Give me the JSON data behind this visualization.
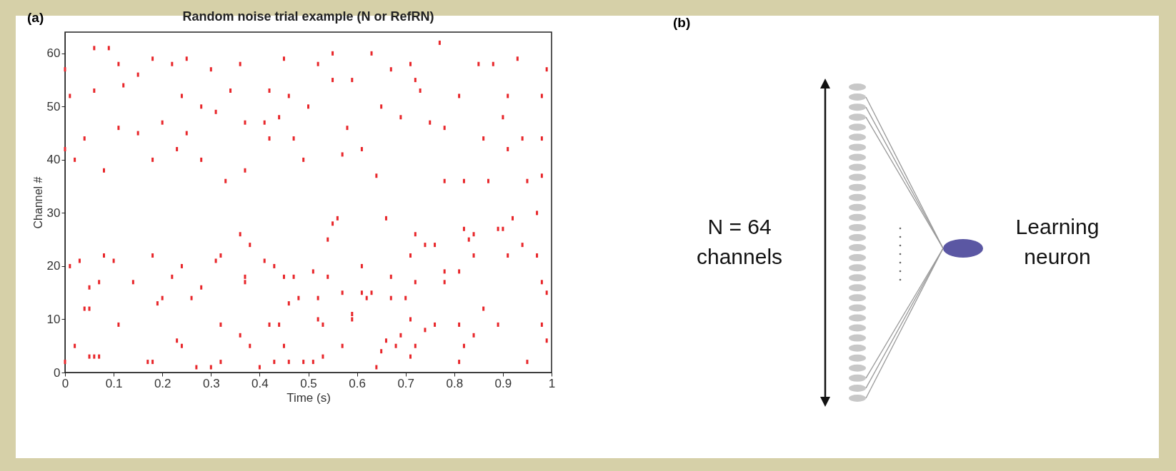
{
  "chart_data": [
    {
      "type": "scatter",
      "title": "Random noise trial example (N or RefRN)",
      "xlabel": "Time (s)",
      "ylabel": "Channel #",
      "annotations": [
        "(a)"
      ],
      "x": [
        0.05,
        0.06,
        0.07,
        0.02,
        0.0,
        0.04,
        0.05,
        0.11,
        0.17,
        0.18,
        0.19,
        0.2,
        0.14,
        0.05,
        0.07,
        0.01,
        0.03,
        0.08,
        0.1,
        0.18,
        0.22,
        0.24,
        0.23,
        0.24,
        0.26,
        0.28,
        0.27,
        0.3,
        0.32,
        0.32,
        0.31,
        0.32,
        0.36,
        0.38,
        0.37,
        0.37,
        0.36,
        0.38,
        0.41,
        0.43,
        0.4,
        0.43,
        0.46,
        0.49,
        0.51,
        0.53,
        0.42,
        0.44,
        0.45,
        0.46,
        0.45,
        0.47,
        0.48,
        0.51,
        0.52,
        0.53,
        0.52,
        0.54,
        0.55,
        0.54,
        0.56,
        0.57,
        0.57,
        0.59,
        0.59,
        0.61,
        0.61,
        0.62,
        0.63,
        0.64,
        0.65,
        0.66,
        0.67,
        0.67,
        0.66,
        0.68,
        0.69,
        0.71,
        0.7,
        0.71,
        0.72,
        0.71,
        0.72,
        0.72,
        0.74,
        0.76,
        0.74,
        0.76,
        0.78,
        0.78,
        0.81,
        0.81,
        0.82,
        0.81,
        0.84,
        0.82,
        0.83,
        0.84,
        0.84,
        0.86,
        0.89,
        0.89,
        0.9,
        0.91,
        0.92,
        0.94,
        0.95,
        0.97,
        0.97,
        0.98,
        0.99,
        0.98,
        0.99,
        0.0,
        0.01,
        0.0,
        0.02,
        0.04,
        0.06,
        0.06,
        0.08,
        0.09,
        0.11,
        0.11,
        0.12,
        0.15,
        0.15,
        0.18,
        0.18,
        0.2,
        0.22,
        0.23,
        0.24,
        0.25,
        0.25,
        0.28,
        0.28,
        0.3,
        0.31,
        0.33,
        0.34,
        0.36,
        0.37,
        0.37,
        0.41,
        0.42,
        0.42,
        0.44,
        0.45,
        0.46,
        0.47,
        0.49,
        0.5,
        0.52,
        0.55,
        0.55,
        0.57,
        0.58,
        0.59,
        0.61,
        0.63,
        0.64,
        0.65,
        0.67,
        0.69,
        0.71,
        0.72,
        0.73,
        0.75,
        0.77,
        0.78,
        0.78,
        0.81,
        0.82,
        0.85,
        0.86,
        0.87,
        0.88,
        0.9,
        0.91,
        0.93,
        0.94,
        0.95,
        0.98,
        0.98,
        0.99,
        0.98,
        0.91
      ],
      "values": [
        3,
        3,
        3,
        5,
        2,
        12,
        12,
        9,
        2,
        2,
        13,
        14,
        17,
        16,
        17,
        20,
        21,
        22,
        21,
        22,
        18,
        20,
        6,
        5,
        14,
        16,
        1,
        1,
        2,
        9,
        21,
        22,
        7,
        5,
        18,
        17,
        26,
        24,
        21,
        20,
        1,
        2,
        2,
        2,
        2,
        3,
        9,
        9,
        5,
        13,
        18,
        18,
        14,
        19,
        10,
        9,
        14,
        18,
        28,
        25,
        29,
        15,
        5,
        11,
        10,
        20,
        15,
        14,
        15,
        1,
        4,
        6,
        18,
        14,
        29,
        5,
        7,
        3,
        14,
        22,
        26,
        10,
        5,
        17,
        8,
        9,
        24,
        24,
        17,
        19,
        19,
        2,
        5,
        9,
        7,
        27,
        25,
        26,
        22,
        12,
        9,
        27,
        27,
        22,
        29,
        24,
        2,
        30,
        22,
        17,
        6,
        9,
        15,
        57,
        52,
        42,
        40,
        44,
        53,
        61,
        38,
        61,
        58,
        46,
        54,
        56,
        45,
        59,
        40,
        47,
        58,
        42,
        52,
        59,
        45,
        50,
        40,
        57,
        49,
        36,
        53,
        58,
        47,
        38,
        47,
        53,
        44,
        48,
        59,
        52,
        44,
        40,
        50,
        58,
        55,
        60,
        41,
        46,
        55,
        42,
        60,
        37,
        50,
        57,
        48,
        58,
        55,
        53,
        47,
        62,
        46,
        36,
        52,
        36,
        58,
        44,
        36,
        58,
        48,
        52,
        59,
        44,
        36,
        44,
        37,
        57,
        52,
        42
      ],
      "color": "#e8262a",
      "xlim": [
        0,
        1
      ],
      "ylim": [
        0,
        64
      ],
      "xticks": [
        0,
        0.1,
        0.2,
        0.3,
        0.4,
        0.5,
        0.6,
        0.7,
        0.8,
        0.9,
        1
      ],
      "yticks": [
        0,
        10,
        20,
        30,
        40,
        50,
        60
      ]
    },
    {
      "type": "other",
      "title": "(b)",
      "annotations": [
        "N = 64 channels",
        "Learning neuron"
      ]
    }
  ]
}
